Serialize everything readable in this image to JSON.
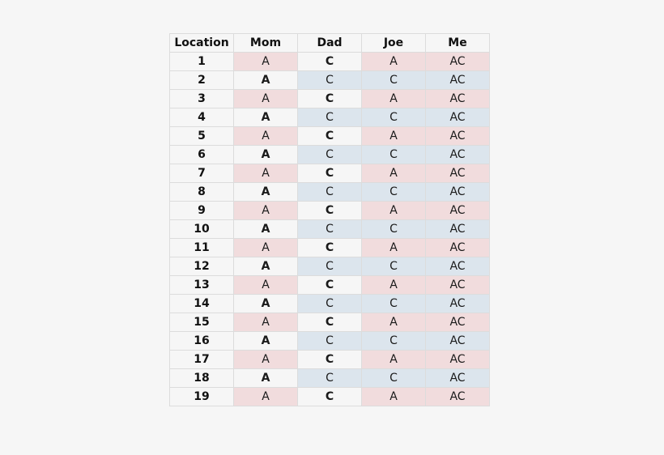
{
  "headers": [
    "Location",
    "Mom",
    "Dad",
    "Joe",
    "Me"
  ],
  "colors": {
    "pink": "#f1dcdd",
    "blue": "#dce5ed",
    "white": "#f6f6f6"
  },
  "rows": [
    {
      "location": "1",
      "mom": "A",
      "dad": "C",
      "joe": "A",
      "me": "AC"
    },
    {
      "location": "2",
      "mom": "A",
      "dad": "C",
      "joe": "C",
      "me": "AC"
    },
    {
      "location": "3",
      "mom": "A",
      "dad": "C",
      "joe": "A",
      "me": "AC"
    },
    {
      "location": "4",
      "mom": "A",
      "dad": "C",
      "joe": "C",
      "me": "AC"
    },
    {
      "location": "5",
      "mom": "A",
      "dad": "C",
      "joe": "A",
      "me": "AC"
    },
    {
      "location": "6",
      "mom": "A",
      "dad": "C",
      "joe": "C",
      "me": "AC"
    },
    {
      "location": "7",
      "mom": "A",
      "dad": "C",
      "joe": "A",
      "me": "AC"
    },
    {
      "location": "8",
      "mom": "A",
      "dad": "C",
      "joe": "C",
      "me": "AC"
    },
    {
      "location": "9",
      "mom": "A",
      "dad": "C",
      "joe": "A",
      "me": "AC"
    },
    {
      "location": "10",
      "mom": "A",
      "dad": "C",
      "joe": "C",
      "me": "AC"
    },
    {
      "location": "11",
      "mom": "A",
      "dad": "C",
      "joe": "A",
      "me": "AC"
    },
    {
      "location": "12",
      "mom": "A",
      "dad": "C",
      "joe": "C",
      "me": "AC"
    },
    {
      "location": "13",
      "mom": "A",
      "dad": "C",
      "joe": "A",
      "me": "AC"
    },
    {
      "location": "14",
      "mom": "A",
      "dad": "C",
      "joe": "C",
      "me": "AC"
    },
    {
      "location": "15",
      "mom": "A",
      "dad": "C",
      "joe": "A",
      "me": "AC"
    },
    {
      "location": "16",
      "mom": "A",
      "dad": "C",
      "joe": "C",
      "me": "AC"
    },
    {
      "location": "17",
      "mom": "A",
      "dad": "C",
      "joe": "A",
      "me": "AC"
    },
    {
      "location": "18",
      "mom": "A",
      "dad": "C",
      "joe": "C",
      "me": "AC"
    },
    {
      "location": "19",
      "mom": "A",
      "dad": "C",
      "joe": "A",
      "me": "AC"
    }
  ]
}
